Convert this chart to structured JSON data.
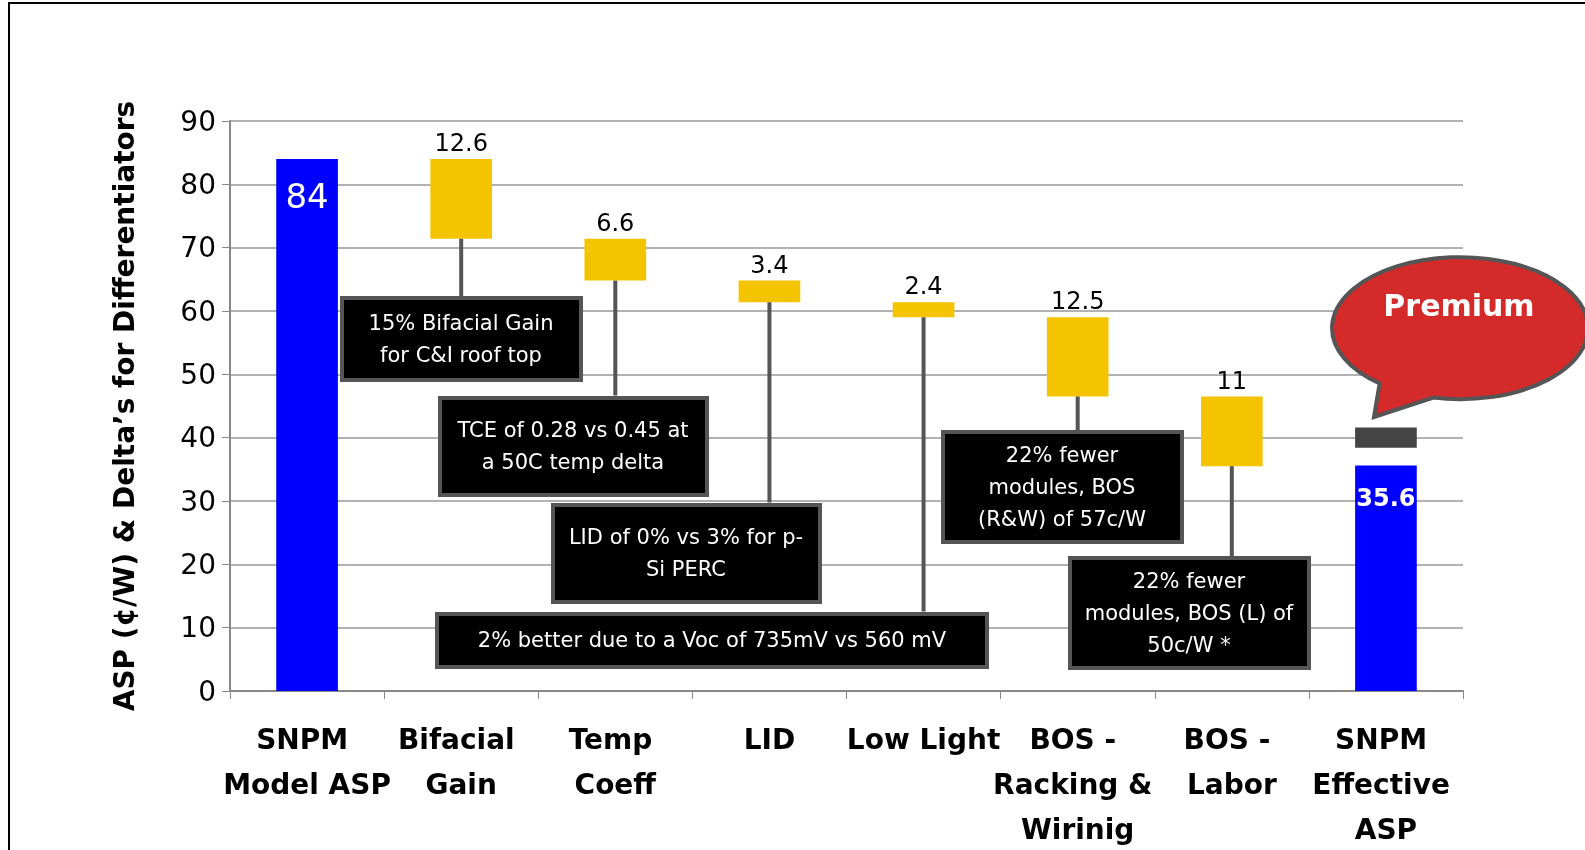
{
  "chart_data": {
    "type": "bar",
    "ylabel": "ASP (¢/W) & Delta’s for Differentiators",
    "categories": [
      "SNPM Model ASP",
      "Bifacial Gain",
      "Temp Coeff",
      "LID",
      "Low Light",
      "BOS - Racking & Wirinig",
      "BOS - Labor",
      "SNPM Effective ASP"
    ],
    "series": [
      {
        "values": [
          84,
          12.6,
          6.6,
          3.4,
          2.4,
          12.5,
          11,
          35.6
        ],
        "base": [
          0,
          71.4,
          64.8,
          61.4,
          59,
          46.5,
          35.5,
          0
        ],
        "colors": [
          "#0000ff",
          "#f5c400",
          "#f5c400",
          "#f5c400",
          "#f5c400",
          "#f5c400",
          "#f5c400",
          "#0000ff"
        ],
        "value_labels": [
          "84",
          "12.6",
          "6.6",
          "3.4",
          "2.4",
          "12.5",
          "11",
          "35.6"
        ]
      },
      {
        "values": [
          null,
          null,
          null,
          null,
          null,
          null,
          null,
          3.2
        ],
        "base": [
          null,
          null,
          null,
          null,
          null,
          null,
          null,
          38.4
        ],
        "color": "#444444"
      }
    ],
    "ylim": [
      0,
      90
    ],
    "yticks": [
      0,
      10,
      20,
      30,
      40,
      50,
      60,
      70,
      80,
      90
    ],
    "grid": "y",
    "annotations": [
      {
        "text": "15% Bifacial Gain for C&I roof top",
        "x": "Bifacial Gain",
        "y": 71.4
      },
      {
        "text": "TCE of 0.28 vs 0.45 at a 50C temp delta",
        "x": "Temp Coeff",
        "y": 64.8
      },
      {
        "text": "LID of 0% vs 3% for p-Si PERC",
        "x": "LID",
        "y": 61.4
      },
      {
        "text": "2% better due to a Voc of 735mV vs 560 mV",
        "x": "Low Light",
        "y": 59
      },
      {
        "text": "22% fewer modules, BOS (R&W) of 57c/W",
        "x": "BOS - Racking & Wirinig",
        "y": 46.5
      },
      {
        "text": "22% fewer modules, BOS (L) of 50c/W *",
        "x": "BOS - Labor",
        "y": 35.5
      },
      "Premium"
    ]
  }
}
